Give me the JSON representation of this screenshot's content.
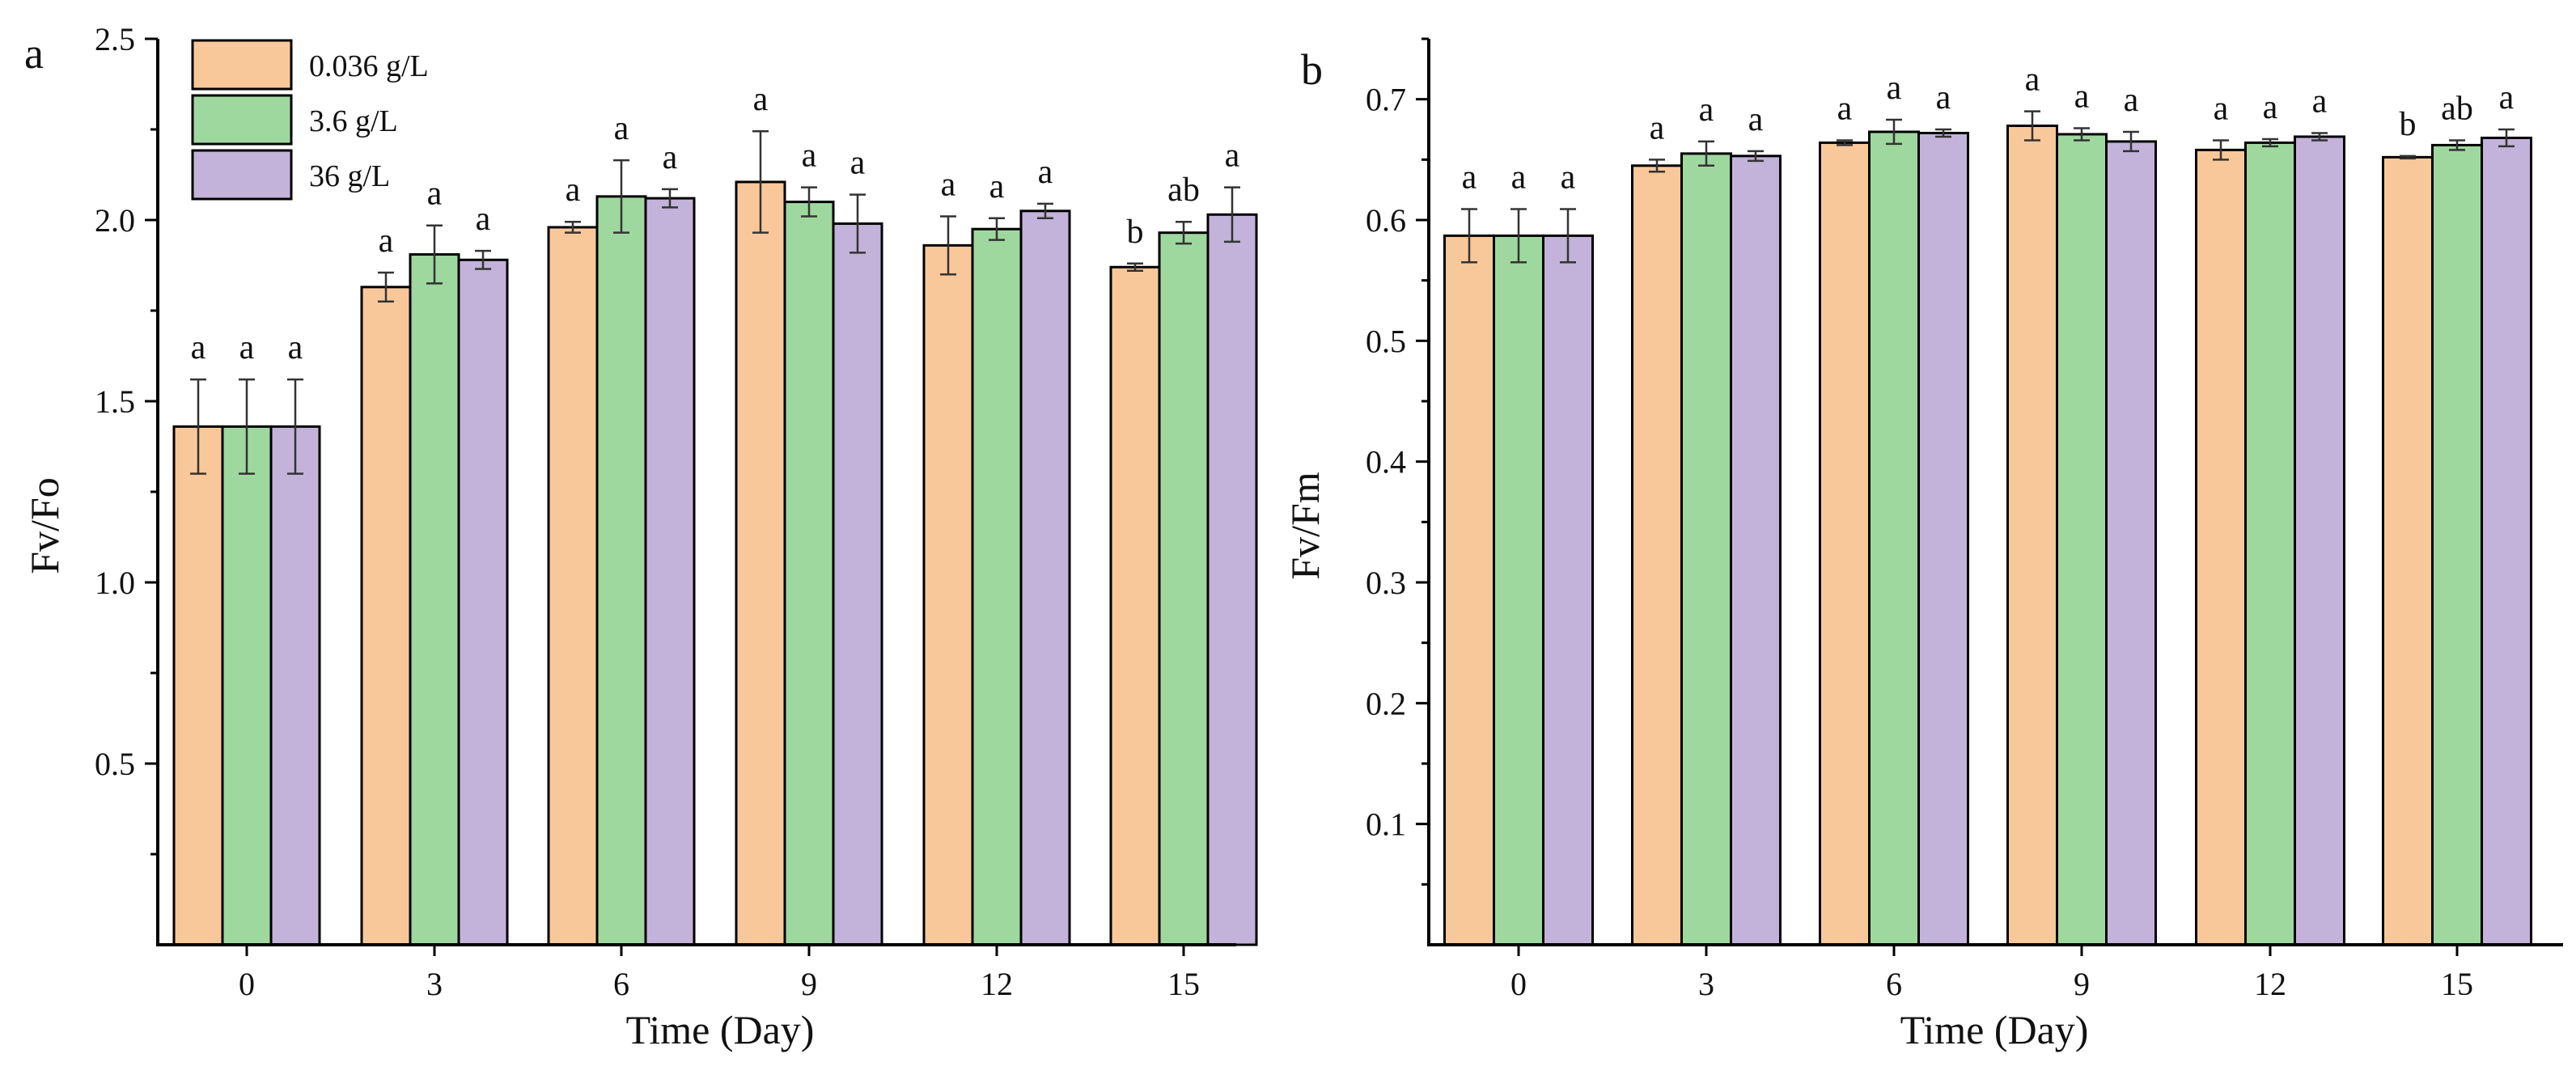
{
  "colors": {
    "0.036 g/L": "#f9c89a",
    "3.6 g/L": "#9fd89f",
    "36 g/L": "#c3b3da"
  },
  "legend_labels": [
    "0.036 g/L",
    "3.6 g/L",
    "36 g/L"
  ],
  "chart_data": [
    {
      "type": "bar",
      "panel": "a",
      "title": "",
      "xlabel": "Time (Day)",
      "ylabel": "Fv/Fo",
      "ylim": [
        0,
        2.5
      ],
      "yticks": [
        "0.5",
        "1.0",
        "1.5",
        "2.0",
        "2.5"
      ],
      "categories": [
        "0",
        "3",
        "6",
        "9",
        "12",
        "15"
      ],
      "series": [
        {
          "name": "0.036 g/L",
          "values": [
            1.43,
            1.815,
            1.98,
            2.105,
            1.93,
            1.87
          ],
          "errors": [
            0.13,
            0.04,
            0.015,
            0.14,
            0.08,
            0.01
          ],
          "sig": [
            "a",
            "a",
            "a",
            "a",
            "a",
            "b"
          ]
        },
        {
          "name": "3.6 g/L",
          "values": [
            1.43,
            1.905,
            2.065,
            2.05,
            1.975,
            1.965
          ],
          "errors": [
            0.13,
            0.08,
            0.1,
            0.04,
            0.03,
            0.03
          ],
          "sig": [
            "a",
            "a",
            "a",
            "a",
            "a",
            "ab"
          ]
        },
        {
          "name": "36 g/L",
          "values": [
            1.43,
            1.89,
            2.06,
            1.99,
            2.025,
            2.015
          ],
          "errors": [
            0.13,
            0.025,
            0.025,
            0.08,
            0.02,
            0.075
          ],
          "sig": [
            "a",
            "a",
            "a",
            "a",
            "a",
            "a"
          ]
        }
      ]
    },
    {
      "type": "bar",
      "panel": "b",
      "title": "",
      "xlabel": "Time (Day)",
      "ylabel": "Fv/Fm",
      "ylim": [
        0,
        0.75
      ],
      "yticks": [
        "0.1",
        "0.2",
        "0.3",
        "0.4",
        "0.5",
        "0.6",
        "0.7"
      ],
      "categories": [
        "0",
        "3",
        "6",
        "9",
        "12",
        "15"
      ],
      "series": [
        {
          "name": "0.036 g/L",
          "values": [
            0.587,
            0.645,
            0.664,
            0.678,
            0.658,
            0.652
          ],
          "errors": [
            0.022,
            0.005,
            0.002,
            0.012,
            0.008,
            0.001
          ],
          "sig": [
            "a",
            "a",
            "a",
            "a",
            "a",
            "b"
          ]
        },
        {
          "name": "3.6 g/L",
          "values": [
            0.587,
            0.655,
            0.673,
            0.671,
            0.664,
            0.662
          ],
          "errors": [
            0.022,
            0.01,
            0.01,
            0.005,
            0.003,
            0.004
          ],
          "sig": [
            "a",
            "a",
            "a",
            "a",
            "a",
            "ab"
          ]
        },
        {
          "name": "36 g/L",
          "values": [
            0.587,
            0.653,
            0.672,
            0.665,
            0.669,
            0.668
          ],
          "errors": [
            0.022,
            0.004,
            0.003,
            0.008,
            0.003,
            0.007
          ],
          "sig": [
            "a",
            "a",
            "a",
            "a",
            "a",
            "a"
          ]
        }
      ]
    }
  ]
}
